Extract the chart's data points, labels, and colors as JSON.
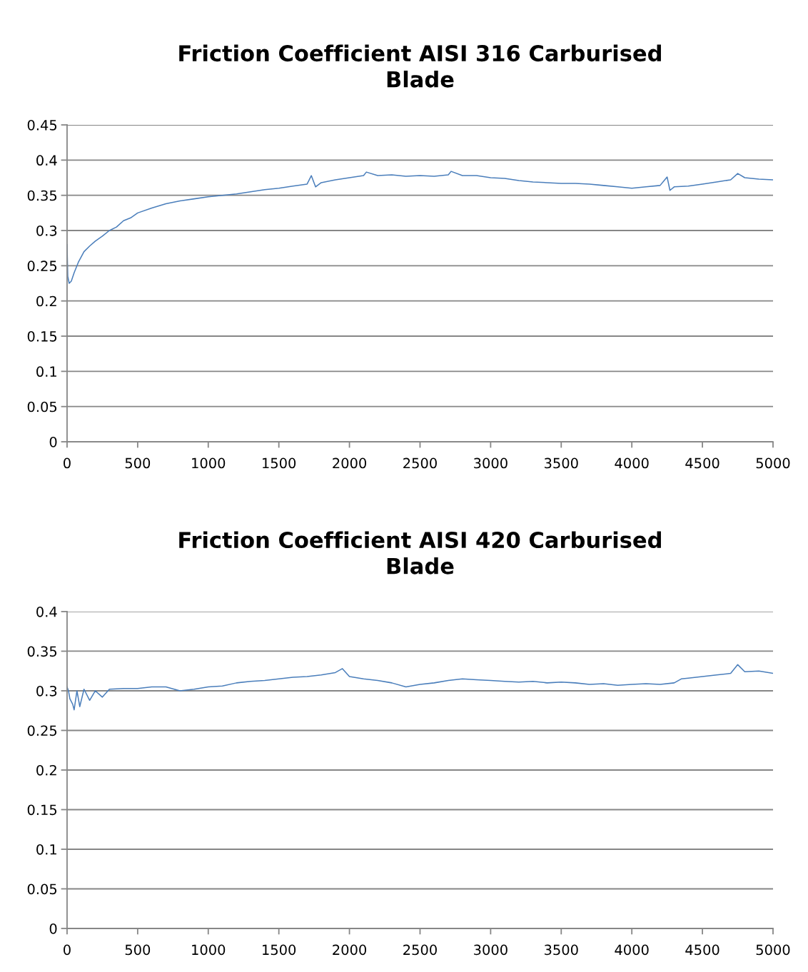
{
  "chart_data": [
    {
      "type": "line",
      "title": "Friction Coefficient AISI 316 Carburised\nBlade",
      "xlim": [
        0,
        5000
      ],
      "xticks": [
        0,
        500,
        1000,
        1500,
        2000,
        2500,
        3000,
        3500,
        4000,
        4500,
        5000
      ],
      "ylim": [
        0,
        0.45
      ],
      "yticks": [
        0,
        0.05,
        0.1,
        0.15,
        0.2,
        0.25,
        0.3,
        0.35,
        0.4,
        0.45
      ],
      "grid": "y",
      "legend": false,
      "series": [
        {
          "color": "#4a7ebb",
          "x": [
            0,
            5,
            15,
            30,
            50,
            80,
            120,
            160,
            200,
            250,
            300,
            350,
            400,
            450,
            500,
            600,
            700,
            800,
            900,
            1000,
            1100,
            1200,
            1300,
            1400,
            1500,
            1600,
            1700,
            1730,
            1760,
            1800,
            1900,
            2000,
            2100,
            2120,
            2200,
            2300,
            2400,
            2500,
            2600,
            2700,
            2720,
            2800,
            2900,
            3000,
            3100,
            3200,
            3300,
            3400,
            3500,
            3600,
            3700,
            3800,
            3900,
            4000,
            4100,
            4200,
            4250,
            4270,
            4300,
            4400,
            4500,
            4600,
            4700,
            4750,
            4800,
            4900,
            5000
          ],
          "values": [
            0.28,
            0.235,
            0.225,
            0.228,
            0.24,
            0.255,
            0.27,
            0.278,
            0.285,
            0.292,
            0.3,
            0.305,
            0.314,
            0.318,
            0.325,
            0.332,
            0.338,
            0.342,
            0.345,
            0.348,
            0.35,
            0.352,
            0.355,
            0.358,
            0.36,
            0.363,
            0.366,
            0.378,
            0.362,
            0.368,
            0.372,
            0.375,
            0.378,
            0.383,
            0.378,
            0.379,
            0.377,
            0.378,
            0.377,
            0.379,
            0.384,
            0.378,
            0.378,
            0.375,
            0.374,
            0.371,
            0.369,
            0.368,
            0.367,
            0.367,
            0.366,
            0.364,
            0.362,
            0.36,
            0.362,
            0.364,
            0.376,
            0.357,
            0.362,
            0.363,
            0.366,
            0.369,
            0.372,
            0.381,
            0.375,
            0.373,
            0.372
          ]
        }
      ]
    },
    {
      "type": "line",
      "title": "Friction Coefficient AISI 420 Carburised\nBlade",
      "xlim": [
        0,
        5000
      ],
      "xticks": [
        0,
        500,
        1000,
        1500,
        2000,
        2500,
        3000,
        3500,
        4000,
        4500,
        5000
      ],
      "ylim": [
        0,
        0.4
      ],
      "yticks": [
        0,
        0.05,
        0.1,
        0.15,
        0.2,
        0.25,
        0.3,
        0.35,
        0.4
      ],
      "grid": "y",
      "legend": false,
      "series": [
        {
          "color": "#4a7ebb",
          "x": [
            0,
            10,
            20,
            40,
            50,
            70,
            90,
            120,
            160,
            200,
            250,
            300,
            400,
            500,
            600,
            700,
            800,
            900,
            1000,
            1100,
            1200,
            1300,
            1400,
            1500,
            1600,
            1700,
            1800,
            1900,
            1950,
            2000,
            2100,
            2200,
            2300,
            2400,
            2500,
            2600,
            2700,
            2800,
            2900,
            3000,
            3100,
            3200,
            3300,
            3400,
            3500,
            3600,
            3700,
            3800,
            3900,
            4000,
            4100,
            4200,
            4300,
            4350,
            4400,
            4500,
            4600,
            4700,
            4750,
            4800,
            4900,
            5000
          ],
          "values": [
            0.305,
            0.3,
            0.29,
            0.283,
            0.276,
            0.3,
            0.28,
            0.302,
            0.288,
            0.3,
            0.292,
            0.302,
            0.303,
            0.303,
            0.305,
            0.305,
            0.3,
            0.302,
            0.305,
            0.306,
            0.31,
            0.312,
            0.313,
            0.315,
            0.317,
            0.318,
            0.32,
            0.323,
            0.328,
            0.318,
            0.315,
            0.313,
            0.31,
            0.305,
            0.308,
            0.31,
            0.313,
            0.315,
            0.314,
            0.313,
            0.312,
            0.311,
            0.312,
            0.31,
            0.311,
            0.31,
            0.308,
            0.309,
            0.307,
            0.308,
            0.309,
            0.308,
            0.31,
            0.315,
            0.316,
            0.318,
            0.32,
            0.322,
            0.333,
            0.324,
            0.325,
            0.322
          ]
        }
      ]
    }
  ]
}
